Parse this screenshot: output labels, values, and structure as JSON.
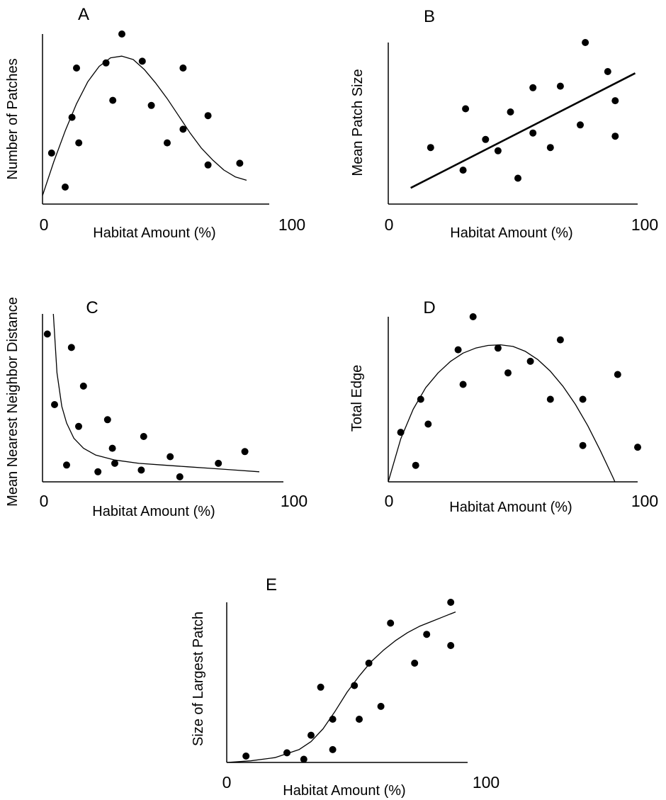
{
  "chart_data": [
    {
      "panel": "A",
      "type": "scatter",
      "xlabel": "Habitat Amount (%)",
      "ylabel": "Number of Patches",
      "x_tick_labels": [
        "0",
        "100"
      ],
      "xlim": [
        0,
        100
      ],
      "ylim": [
        0,
        100
      ],
      "points": [
        [
          4,
          30
        ],
        [
          10,
          10
        ],
        [
          13,
          51
        ],
        [
          15,
          80
        ],
        [
          16,
          36
        ],
        [
          28,
          83
        ],
        [
          31,
          61
        ],
        [
          35,
          100
        ],
        [
          44,
          84
        ],
        [
          48,
          58
        ],
        [
          55,
          36
        ],
        [
          62,
          44
        ],
        [
          62,
          80
        ],
        [
          73,
          52
        ],
        [
          73,
          23
        ],
        [
          87,
          24
        ]
      ],
      "curve": [
        [
          0,
          5
        ],
        [
          5,
          25
        ],
        [
          10,
          43
        ],
        [
          15,
          59
        ],
        [
          20,
          72
        ],
        [
          25,
          81
        ],
        [
          30,
          86
        ],
        [
          35,
          87
        ],
        [
          40,
          85
        ],
        [
          45,
          79
        ],
        [
          50,
          71
        ],
        [
          55,
          62
        ],
        [
          60,
          52
        ],
        [
          65,
          42
        ],
        [
          70,
          33
        ],
        [
          75,
          26
        ],
        [
          80,
          20
        ],
        [
          85,
          16
        ],
        [
          90,
          14
        ]
      ]
    },
    {
      "panel": "B",
      "type": "scatter",
      "xlabel": "Habitat Amount (%)",
      "ylabel": "Mean Patch Size",
      "x_tick_labels": [
        "0",
        "100"
      ],
      "xlim": [
        0,
        100
      ],
      "ylim": [
        0,
        100
      ],
      "points": [
        [
          17,
          35
        ],
        [
          30,
          21
        ],
        [
          31,
          59
        ],
        [
          39,
          40
        ],
        [
          44,
          33
        ],
        [
          49,
          57
        ],
        [
          52,
          16
        ],
        [
          58,
          44
        ],
        [
          58,
          72
        ],
        [
          65,
          35
        ],
        [
          69,
          73
        ],
        [
          77,
          49
        ],
        [
          79,
          100
        ],
        [
          88,
          82
        ],
        [
          91,
          64
        ],
        [
          91,
          42
        ]
      ],
      "trend_line": [
        [
          9,
          10
        ],
        [
          99,
          81
        ]
      ]
    },
    {
      "panel": "C",
      "type": "scatter",
      "xlabel": "Habitat Amount (%)",
      "ylabel": "Mean Nearest Neighbor  Distance",
      "x_tick_labels": [
        "0",
        "100"
      ],
      "xlim": [
        0,
        100
      ],
      "ylim": [
        0,
        100
      ],
      "points": [
        [
          2,
          88
        ],
        [
          5,
          46
        ],
        [
          10,
          10
        ],
        [
          12,
          80
        ],
        [
          15,
          33
        ],
        [
          17,
          57
        ],
        [
          23,
          6
        ],
        [
          27,
          37
        ],
        [
          29,
          20
        ],
        [
          30,
          11
        ],
        [
          41,
          7
        ],
        [
          42,
          27
        ],
        [
          53,
          15
        ],
        [
          57,
          3
        ],
        [
          73,
          11
        ],
        [
          84,
          18
        ]
      ],
      "curve": [
        [
          4.5,
          100
        ],
        [
          6,
          65
        ],
        [
          8,
          45
        ],
        [
          10,
          35
        ],
        [
          13,
          26
        ],
        [
          17,
          20
        ],
        [
          22,
          16
        ],
        [
          30,
          13
        ],
        [
          40,
          11
        ],
        [
          50,
          10
        ],
        [
          60,
          9
        ],
        [
          70,
          8
        ],
        [
          80,
          7
        ],
        [
          90,
          6
        ]
      ]
    },
    {
      "panel": "D",
      "type": "scatter",
      "xlabel": "Habitat Amount (%)",
      "ylabel": "Total Edge",
      "x_tick_labels": [
        "0",
        "100"
      ],
      "xlim": [
        0,
        100
      ],
      "ylim": [
        0,
        100
      ],
      "points": [
        [
          5,
          30
        ],
        [
          11,
          10
        ],
        [
          13,
          50
        ],
        [
          16,
          35
        ],
        [
          28,
          80
        ],
        [
          30,
          59
        ],
        [
          34,
          100
        ],
        [
          44,
          81
        ],
        [
          48,
          66
        ],
        [
          57,
          73
        ],
        [
          65,
          50
        ],
        [
          69,
          86
        ],
        [
          78,
          50
        ],
        [
          78,
          22
        ],
        [
          92,
          65
        ],
        [
          100,
          21
        ]
      ],
      "curve": [
        [
          0,
          0
        ],
        [
          5,
          26
        ],
        [
          10,
          44
        ],
        [
          15,
          57
        ],
        [
          20,
          66
        ],
        [
          25,
          73
        ],
        [
          30,
          78
        ],
        [
          35,
          81
        ],
        [
          40,
          82.6
        ],
        [
          45,
          83
        ],
        [
          50,
          82
        ],
        [
          55,
          79
        ],
        [
          60,
          74
        ],
        [
          65,
          67
        ],
        [
          70,
          58
        ],
        [
          75,
          47
        ],
        [
          80,
          34
        ],
        [
          85,
          19
        ],
        [
          90,
          3
        ],
        [
          95,
          -14
        ]
      ]
    },
    {
      "panel": "E",
      "type": "scatter",
      "xlabel": "Habitat Amount (%)",
      "ylabel": "Size of Largest Patch",
      "x_tick_labels": [
        "0",
        "100"
      ],
      "xlim": [
        0,
        100
      ],
      "ylim": [
        0,
        100
      ],
      "points": [
        [
          8,
          4
        ],
        [
          25,
          6
        ],
        [
          32,
          2
        ],
        [
          35,
          17
        ],
        [
          39,
          47
        ],
        [
          44,
          27
        ],
        [
          44,
          8
        ],
        [
          53,
          48
        ],
        [
          55,
          27
        ],
        [
          59,
          62
        ],
        [
          64,
          35
        ],
        [
          68,
          87
        ],
        [
          78,
          62
        ],
        [
          83,
          80
        ],
        [
          93,
          100
        ],
        [
          93,
          73
        ]
      ],
      "curve": [
        [
          0,
          0
        ],
        [
          10,
          1
        ],
        [
          20,
          3
        ],
        [
          30,
          8
        ],
        [
          35,
          13
        ],
        [
          40,
          21
        ],
        [
          45,
          32
        ],
        [
          50,
          44
        ],
        [
          55,
          54
        ],
        [
          60,
          63
        ],
        [
          65,
          70
        ],
        [
          70,
          76
        ],
        [
          75,
          81
        ],
        [
          80,
          85
        ],
        [
          85,
          88
        ],
        [
          90,
          91
        ],
        [
          95,
          94
        ]
      ]
    }
  ]
}
